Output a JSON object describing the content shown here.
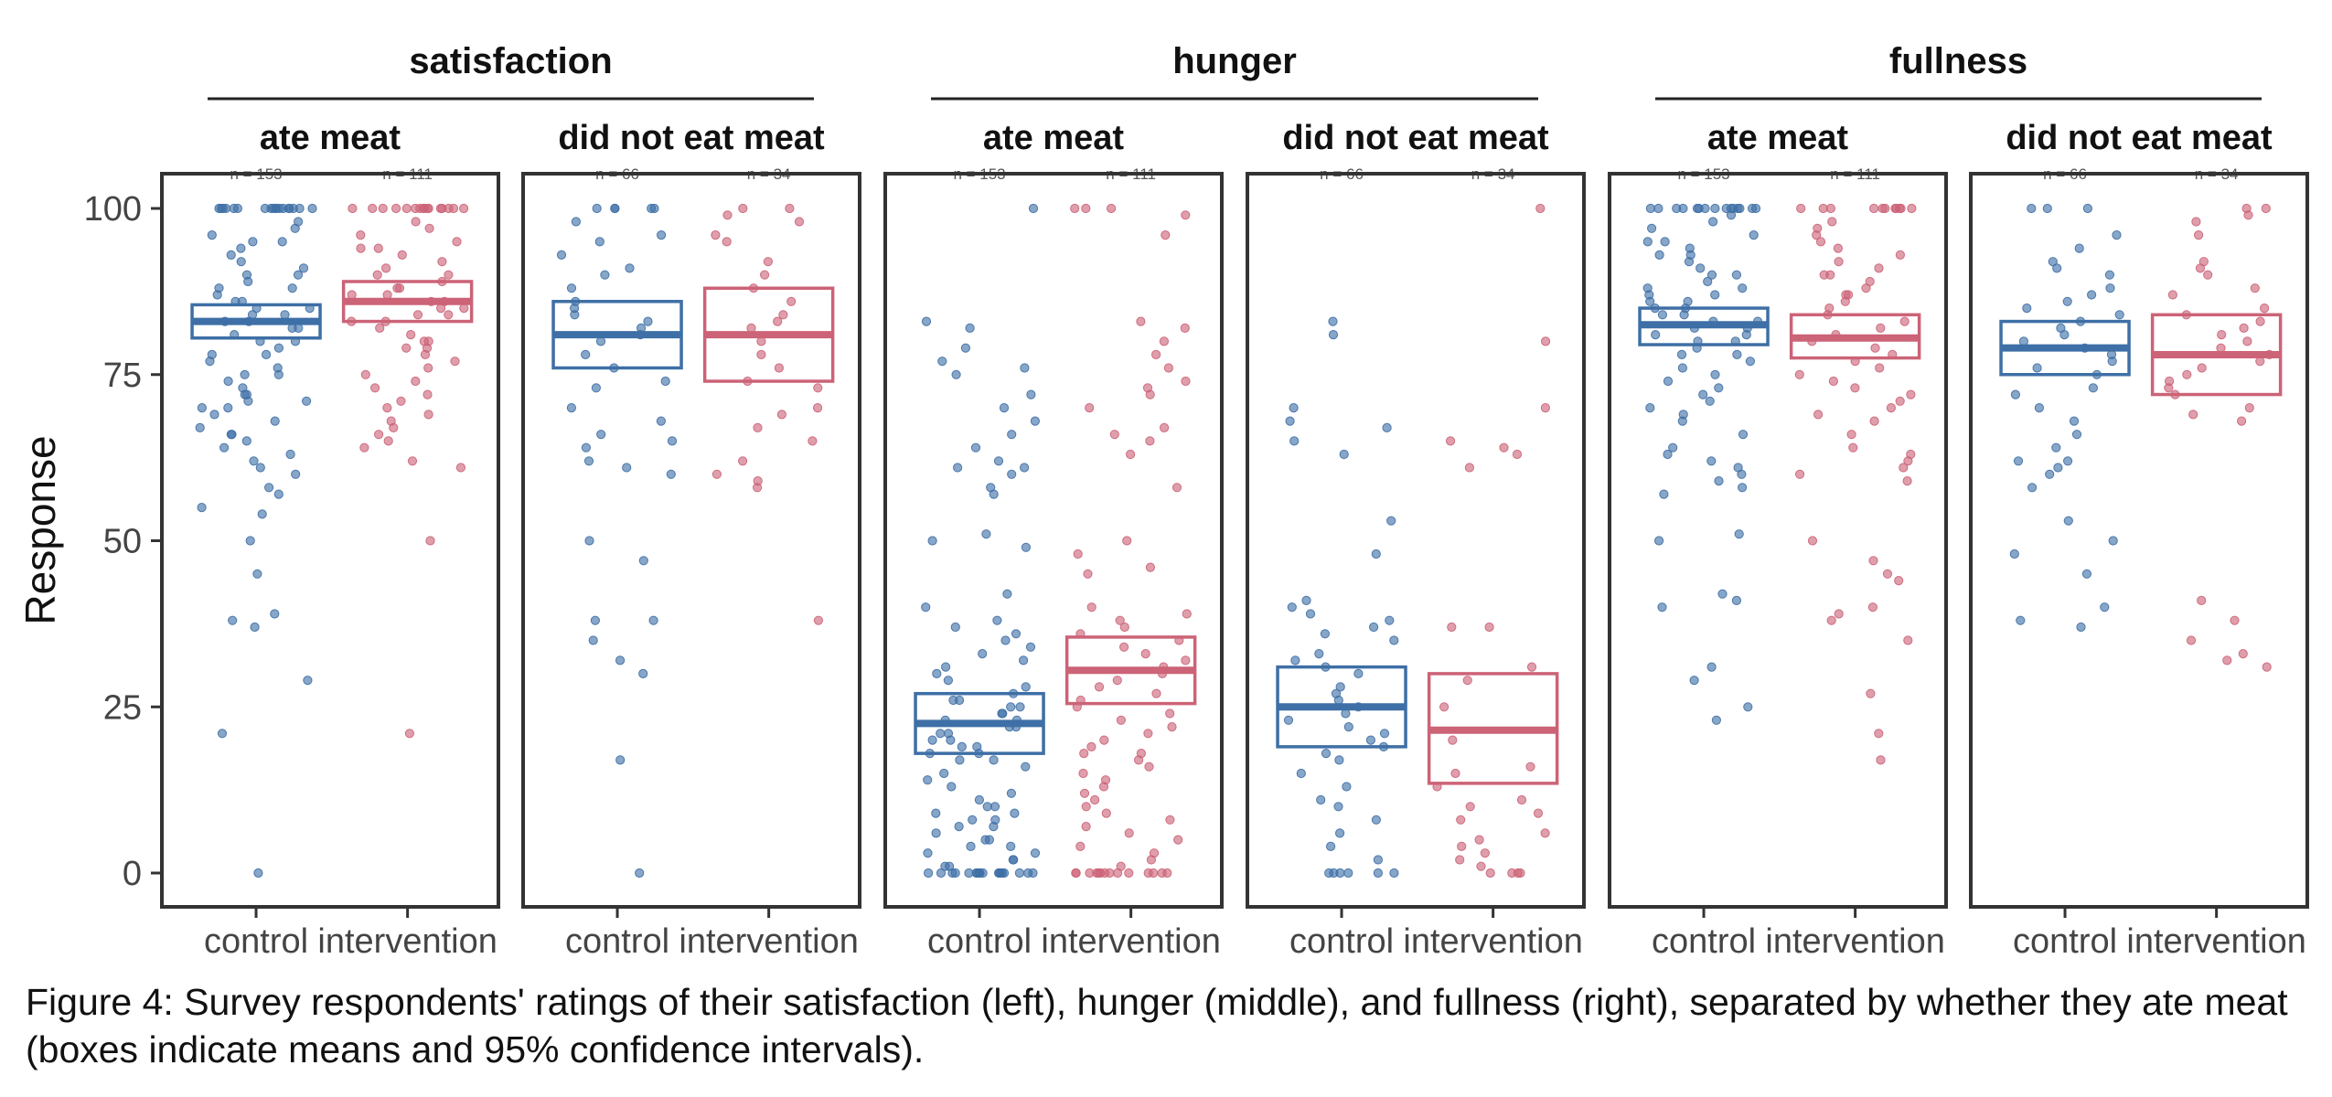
{
  "chart_data": {
    "type": "scatter",
    "ylabel": "Response",
    "ylim": [
      0,
      100
    ],
    "yticks": [
      0,
      25,
      50,
      75,
      100
    ],
    "grid": false,
    "legend": "none",
    "categories": [
      "control",
      "intervention"
    ],
    "colors": {
      "control": "#3e6fa6",
      "intervention": "#cc6377",
      "frame": "#333333"
    },
    "groups": [
      {
        "label": "satisfaction",
        "panels": [
          {
            "label": "ate meat",
            "n": [
              "n = 153",
              "n = 111"
            ],
            "control": {
              "mean": 83,
              "ci": [
                80.5,
                85.5
              ],
              "points": [
                100,
                100,
                100,
                100,
                100,
                100,
                100,
                100,
                100,
                100,
                100,
                100,
                100,
                100,
                100,
                100,
                100,
                100,
                98,
                97,
                96,
                95,
                95,
                94,
                93,
                92,
                91,
                90,
                90,
                89,
                88,
                88,
                87,
                86,
                86,
                85,
                85,
                84,
                84,
                83,
                83,
                82,
                82,
                81,
                80,
                80,
                79,
                78,
                78,
                77,
                76,
                75,
                75,
                74,
                73,
                72,
                72,
                71,
                71,
                70,
                70,
                69,
                68,
                67,
                66,
                66,
                65,
                64,
                63,
                62,
                61,
                60,
                58,
                57,
                55,
                54,
                50,
                45,
                39,
                38,
                37,
                29,
                21,
                0
              ]
            },
            "intervention": {
              "mean": 86,
              "ci": [
                83,
                89
              ],
              "points": [
                100,
                100,
                100,
                100,
                100,
                100,
                100,
                100,
                100,
                100,
                100,
                100,
                100,
                100,
                100,
                100,
                98,
                97,
                96,
                95,
                94,
                94,
                93,
                92,
                91,
                90,
                90,
                89,
                88,
                88,
                87,
                87,
                86,
                86,
                85,
                85,
                84,
                84,
                83,
                83,
                82,
                81,
                80,
                80,
                79,
                79,
                78,
                77,
                76,
                75,
                74,
                73,
                72,
                71,
                70,
                69,
                68,
                67,
                66,
                65,
                64,
                62,
                61,
                50,
                21
              ]
            }
          },
          {
            "label": "did not eat meat",
            "n": [
              "n = 66",
              "n = 34"
            ],
            "control": {
              "mean": 81,
              "ci": [
                76,
                86
              ],
              "points": [
                100,
                100,
                100,
                100,
                100,
                98,
                96,
                95,
                93,
                91,
                90,
                88,
                86,
                85,
                84,
                83,
                82,
                81,
                80,
                78,
                76,
                74,
                73,
                70,
                68,
                66,
                65,
                64,
                62,
                61,
                60,
                50,
                47,
                38,
                38,
                35,
                32,
                30,
                17,
                0
              ]
            },
            "intervention": {
              "mean": 81,
              "ci": [
                74,
                88
              ],
              "points": [
                100,
                100,
                99,
                98,
                96,
                95,
                92,
                90,
                88,
                86,
                84,
                83,
                82,
                80,
                78,
                76,
                74,
                73,
                70,
                69,
                67,
                65,
                62,
                60,
                59,
                58,
                38
              ]
            }
          }
        ]
      },
      {
        "label": "hunger",
        "panels": [
          {
            "label": "ate meat",
            "n": [
              "n = 153",
              "n = 111"
            ],
            "control": {
              "mean": 22.5,
              "ci": [
                18,
                27
              ],
              "points": [
                100,
                83,
                82,
                79,
                77,
                76,
                75,
                72,
                70,
                68,
                66,
                64,
                62,
                61,
                61,
                60,
                58,
                57,
                51,
                50,
                49,
                42,
                40,
                38,
                37,
                36,
                35,
                34,
                33,
                32,
                31,
                30,
                29,
                28,
                27,
                26,
                26,
                25,
                25,
                24,
                24,
                23,
                23,
                22,
                22,
                21,
                21,
                20,
                20,
                19,
                19,
                18,
                18,
                17,
                17,
                16,
                15,
                14,
                13,
                12,
                11,
                10,
                10,
                9,
                9,
                8,
                8,
                7,
                7,
                6,
                5,
                5,
                4,
                4,
                3,
                3,
                2,
                2,
                1,
                1,
                0,
                0,
                0,
                0,
                0,
                0,
                0,
                0,
                0,
                0,
                0,
                0,
                0,
                0,
                0,
                0,
                0,
                0
              ]
            },
            "intervention": {
              "mean": 30.5,
              "ci": [
                25.5,
                35.5
              ],
              "points": [
                100,
                100,
                100,
                99,
                96,
                83,
                82,
                80,
                78,
                76,
                74,
                73,
                72,
                70,
                67,
                66,
                65,
                63,
                58,
                50,
                48,
                46,
                45,
                40,
                39,
                38,
                37,
                36,
                35,
                34,
                33,
                32,
                31,
                30,
                29,
                28,
                27,
                26,
                25,
                24,
                23,
                22,
                21,
                20,
                19,
                18,
                18,
                17,
                16,
                15,
                14,
                13,
                12,
                11,
                10,
                9,
                8,
                7,
                6,
                5,
                4,
                3,
                2,
                1,
                0,
                0,
                0,
                0,
                0,
                0,
                0,
                0,
                0,
                0,
                0,
                0,
                0,
                0
              ]
            }
          },
          {
            "label": "did not eat meat",
            "n": [
              "n = 66",
              "n = 34"
            ],
            "control": {
              "mean": 25,
              "ci": [
                19,
                31
              ],
              "points": [
                83,
                81,
                70,
                68,
                67,
                65,
                63,
                53,
                48,
                41,
                40,
                39,
                38,
                37,
                36,
                35,
                33,
                32,
                31,
                30,
                28,
                27,
                26,
                25,
                24,
                23,
                22,
                21,
                20,
                19,
                18,
                17,
                15,
                13,
                11,
                10,
                8,
                6,
                4,
                2,
                0,
                0,
                0,
                0,
                0,
                0
              ]
            },
            "intervention": {
              "mean": 21.5,
              "ci": [
                13.5,
                30
              ],
              "points": [
                100,
                80,
                70,
                65,
                64,
                63,
                61,
                37,
                37,
                31,
                29,
                25,
                20,
                16,
                15,
                13,
                11,
                10,
                9,
                8,
                6,
                5,
                4,
                3,
                2,
                1,
                0,
                0,
                0,
                0
              ]
            }
          }
        ]
      },
      {
        "label": "fullness",
        "panels": [
          {
            "label": "ate meat",
            "n": [
              "n = 153",
              "n = 111"
            ],
            "control": {
              "mean": 82.5,
              "ci": [
                79.5,
                85
              ],
              "points": [
                100,
                100,
                100,
                100,
                100,
                100,
                100,
                100,
                100,
                100,
                100,
                100,
                100,
                100,
                100,
                99,
                98,
                97,
                96,
                95,
                95,
                94,
                93,
                93,
                92,
                91,
                90,
                90,
                89,
                88,
                88,
                87,
                87,
                86,
                86,
                85,
                85,
                84,
                84,
                83,
                83,
                82,
                82,
                81,
                81,
                80,
                80,
                79,
                78,
                78,
                77,
                76,
                75,
                74,
                73,
                72,
                71,
                70,
                69,
                68,
                66,
                64,
                63,
                62,
                61,
                60,
                59,
                58,
                57,
                51,
                50,
                42,
                41,
                40,
                31,
                29,
                25,
                23
              ]
            },
            "intervention": {
              "mean": 80.5,
              "ci": [
                77.5,
                84
              ],
              "points": [
                100,
                100,
                100,
                100,
                100,
                100,
                100,
                100,
                100,
                100,
                100,
                98,
                97,
                96,
                95,
                94,
                93,
                92,
                91,
                90,
                90,
                89,
                88,
                87,
                87,
                86,
                85,
                84,
                83,
                82,
                81,
                80,
                79,
                78,
                77,
                76,
                75,
                74,
                73,
                72,
                71,
                70,
                69,
                68,
                66,
                64,
                63,
                62,
                61,
                60,
                59,
                50,
                47,
                45,
                44,
                40,
                39,
                38,
                35,
                27,
                21,
                17
              ]
            }
          },
          {
            "label": "did not eat meat",
            "n": [
              "n = 66",
              "n = 34"
            ],
            "control": {
              "mean": 79,
              "ci": [
                75,
                83
              ],
              "points": [
                100,
                100,
                100,
                96,
                94,
                92,
                91,
                90,
                88,
                87,
                86,
                85,
                84,
                83,
                82,
                81,
                80,
                79,
                78,
                77,
                76,
                75,
                73,
                72,
                70,
                68,
                66,
                64,
                62,
                62,
                61,
                60,
                58,
                53,
                50,
                48,
                45,
                40,
                38,
                37
              ]
            },
            "intervention": {
              "mean": 78,
              "ci": [
                72,
                84
              ],
              "points": [
                100,
                100,
                99,
                98,
                96,
                92,
                91,
                90,
                88,
                87,
                85,
                84,
                83,
                82,
                81,
                80,
                79,
                78,
                77,
                76,
                75,
                74,
                73,
                72,
                70,
                69,
                68,
                41,
                38,
                35,
                33,
                32,
                31
              ]
            }
          }
        ]
      }
    ]
  },
  "caption": {
    "line1": "Figure 4: Survey respondents' ratings of their satisfaction (left), hunger (middle), and fullness (right), separated by whether they ate meat",
    "line2": "(boxes indicate means and 95% confidence intervals)."
  }
}
